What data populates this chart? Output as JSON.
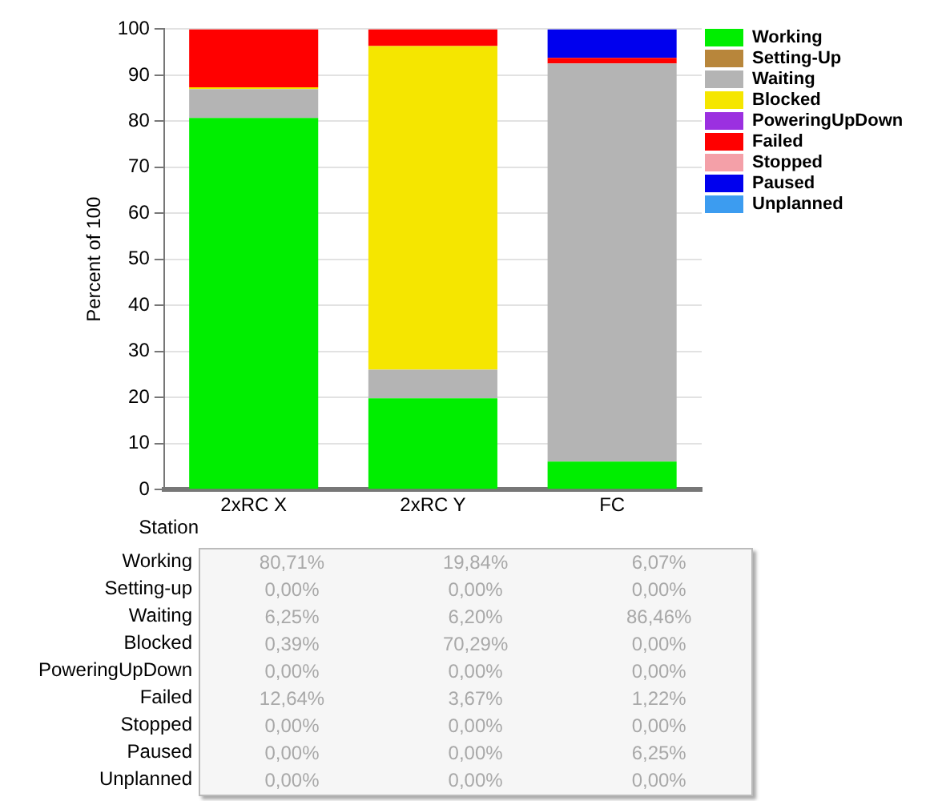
{
  "chart_data": {
    "type": "bar",
    "stacked": true,
    "ylabel": "Percent of 100",
    "xlabel": "Station",
    "categories": [
      "2xRC X",
      "2xRC Y",
      "FC"
    ],
    "ylim": [
      0,
      100
    ],
    "yticks": [
      0,
      10,
      20,
      30,
      40,
      50,
      60,
      70,
      80,
      90,
      100
    ],
    "grid": "y",
    "legend": "top right",
    "series": [
      {
        "name": "Working",
        "color": "#00ee00",
        "values": [
          80.71,
          19.84,
          6.07
        ],
        "value_labels": [
          "80,71%",
          "19,84%",
          "6,07%"
        ]
      },
      {
        "name": "Setting-Up",
        "color": "#b8863b",
        "values": [
          0,
          0,
          0
        ],
        "value_labels": [
          "0,00%",
          "0,00%",
          "0,00%"
        ]
      },
      {
        "name": "Waiting",
        "color": "#b4b4b4",
        "values": [
          6.25,
          6.2,
          86.46
        ],
        "value_labels": [
          "6,25%",
          "6,20%",
          "86,46%"
        ]
      },
      {
        "name": "Blocked",
        "color": "#f5e600",
        "values": [
          0.39,
          70.29,
          0
        ],
        "value_labels": [
          "0,39%",
          "70,29%",
          "0,00%"
        ]
      },
      {
        "name": "PoweringUpDown",
        "color": "#9b30e0",
        "values": [
          0,
          0,
          0
        ],
        "value_labels": [
          "0,00%",
          "0,00%",
          "0,00%"
        ]
      },
      {
        "name": "Failed",
        "color": "#ff0000",
        "values": [
          12.64,
          3.67,
          1.22
        ],
        "value_labels": [
          "12,64%",
          "3,67%",
          "1,22%"
        ]
      },
      {
        "name": "Stopped",
        "color": "#f4a0a8",
        "values": [
          0,
          0,
          0
        ],
        "value_labels": [
          "0,00%",
          "0,00%",
          "0,00%"
        ]
      },
      {
        "name": "Paused",
        "color": "#0000ee",
        "values": [
          0,
          0,
          6.25
        ],
        "value_labels": [
          "0,00%",
          "0,00%",
          "6,25%"
        ]
      },
      {
        "name": "Unplanned",
        "color": "#3c9cf0",
        "values": [
          0,
          0,
          0
        ],
        "value_labels": [
          "0,00%",
          "0,00%",
          "0,00%"
        ]
      }
    ],
    "annotations": [
      "Working",
      "Setting-up",
      "Waiting",
      "Blocked",
      "PoweringUpDown",
      "Failed",
      "Stopped",
      "Paused",
      "Unplanned"
    ]
  }
}
